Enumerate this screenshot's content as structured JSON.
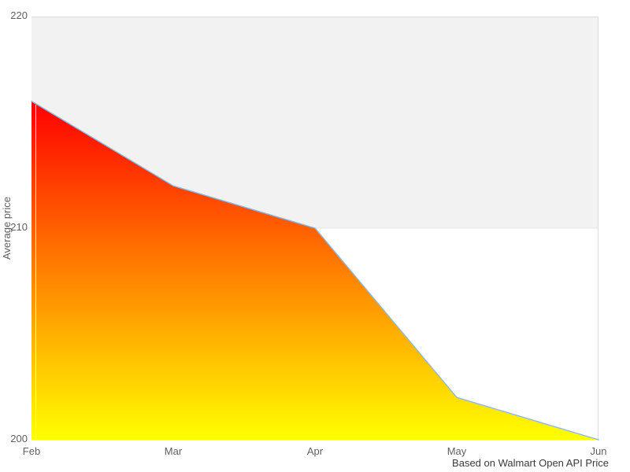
{
  "chart_data": {
    "type": "area",
    "categories": [
      "Feb",
      "Mar",
      "Apr",
      "May",
      "Jun"
    ],
    "values": [
      216,
      212,
      210,
      202,
      200
    ],
    "title": "",
    "xlabel": "",
    "ylabel": "Average price",
    "ylim": [
      200,
      220
    ],
    "yticks": [
      220,
      210,
      200
    ],
    "ytick_labels": [
      "220",
      "210",
      "200"
    ],
    "caption": "Based on Walmart Open API Price",
    "grid": "horizontal band between 210 and 220",
    "legend": "none",
    "colors": {
      "fill_gradient_top": "#ff0000",
      "fill_gradient_bottom": "#ffff00",
      "line": "#92b7dc",
      "band": "#f2f2f2",
      "band_gridline": "#e6e6e6",
      "plot_border": "#dcdcdc",
      "tick_text": "#5f5f5f",
      "caption_text": "#3a3a3a"
    }
  }
}
